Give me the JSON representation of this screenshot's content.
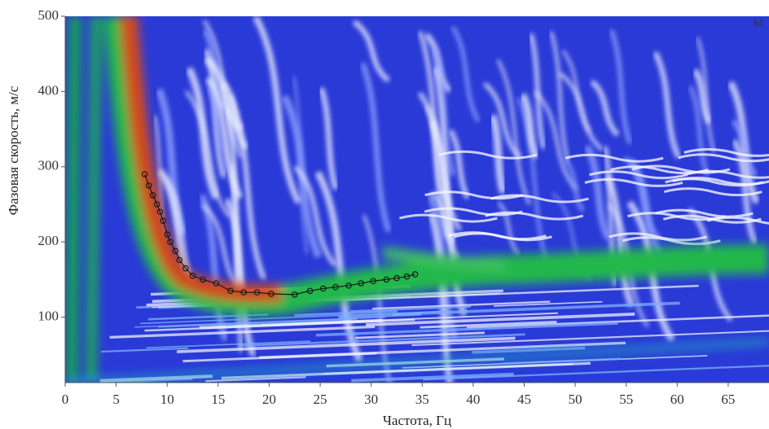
{
  "chart_data": {
    "type": "line",
    "x_label": "Частота, Гц",
    "y_label": "Фазовая скорость, м/с",
    "corner_text": "M",
    "xlim": [
      0,
      69
    ],
    "ylim": [
      13,
      500
    ],
    "xticks": [
      0,
      5,
      10,
      15,
      20,
      25,
      30,
      35,
      40,
      45,
      50,
      55,
      60,
      65
    ],
    "yticks": [
      100,
      200,
      300,
      400,
      500
    ],
    "color": "#1a1a1a",
    "x": [
      7.8,
      8.2,
      8.6,
      9.0,
      9.3,
      9.6,
      10.0,
      10.3,
      10.8,
      11.2,
      11.8,
      12.5,
      13.5,
      14.8,
      16.2,
      17.5,
      18.8,
      20.2,
      22.5,
      24.0,
      25.3,
      26.5,
      27.8,
      29.0,
      30.2,
      31.5,
      32.5,
      33.5,
      34.3
    ],
    "values": [
      290,
      275,
      262,
      250,
      240,
      228,
      210,
      200,
      188,
      176,
      165,
      155,
      150,
      145,
      135,
      133,
      133,
      131,
      130,
      135,
      138,
      140,
      142,
      145,
      148,
      150,
      152,
      154,
      157
    ]
  }
}
